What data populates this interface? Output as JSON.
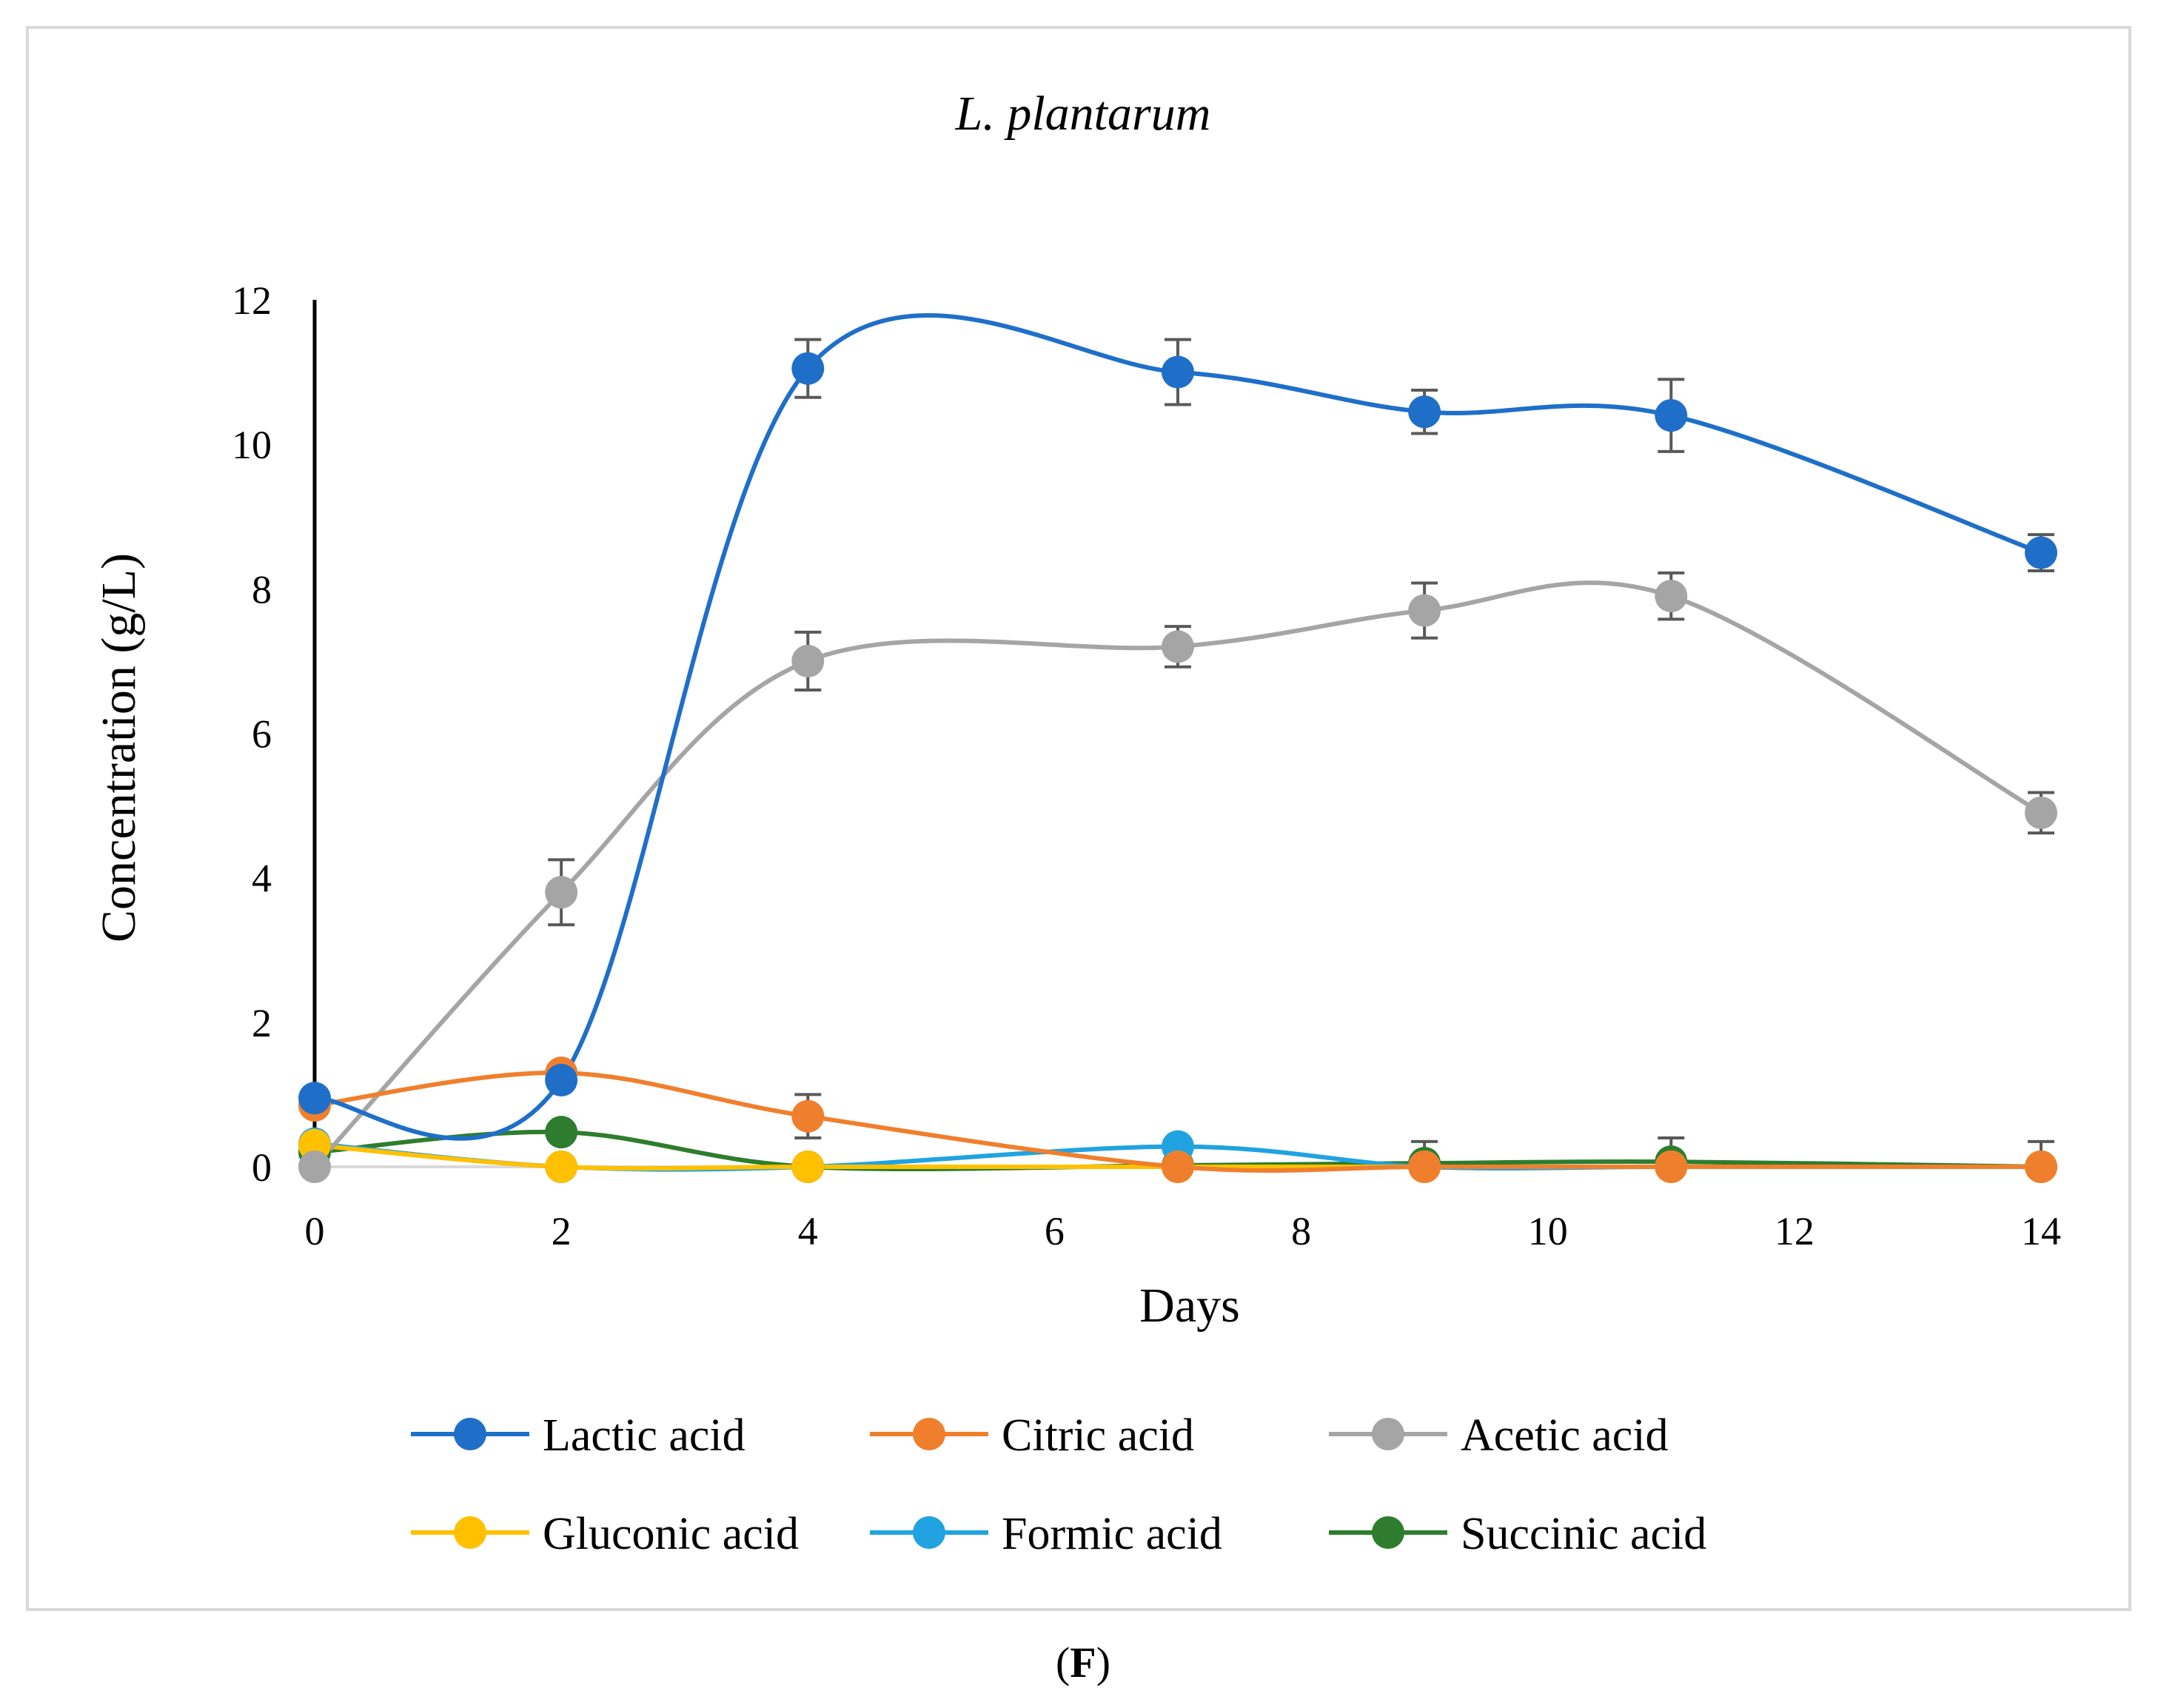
{
  "chart_data": {
    "type": "line",
    "title": "L. plantarum",
    "xlabel": "Days",
    "ylabel": "Concentration (g/L)",
    "panel_label": {
      "open": "(",
      "letter": "F",
      "close": ")"
    },
    "xlim": [
      0,
      14
    ],
    "ylim": [
      0,
      12
    ],
    "x_ticks": [
      0,
      2,
      4,
      6,
      8,
      10,
      12,
      14
    ],
    "y_ticks": [
      0,
      2,
      4,
      6,
      8,
      10,
      12
    ],
    "x": [
      0,
      2,
      4,
      7,
      9,
      11,
      14
    ],
    "smoothed": true,
    "grid": false,
    "legend_position": "bottom",
    "series": [
      {
        "name": "Lactic acid",
        "color": "#1f6fc9",
        "values": [
          0.95,
          1.2,
          11.05,
          11.0,
          10.45,
          10.4,
          8.5
        ],
        "error": [
          0,
          0,
          0.4,
          0.45,
          0.3,
          0.5,
          0.25
        ]
      },
      {
        "name": "Citric acid",
        "color": "#f07f2d",
        "values": [
          0.85,
          1.3,
          0.7,
          0.0,
          0.0,
          0.0,
          0.0
        ],
        "error": [
          0,
          0,
          0.3,
          0,
          0,
          0,
          0
        ]
      },
      {
        "name": "Acetic acid",
        "color": "#a5a5a5",
        "values": [
          0.0,
          3.8,
          7.0,
          7.2,
          7.7,
          7.9,
          4.9
        ],
        "error": [
          0,
          0.45,
          0.4,
          0.28,
          0.38,
          0.32,
          0.28
        ]
      },
      {
        "name": "Gluconic acid",
        "color": "#ffc000",
        "values": [
          0.3,
          0.0,
          0.0,
          0.0,
          0.0,
          0.0,
          0.0
        ],
        "error": [
          0,
          0,
          0,
          0,
          0,
          0,
          0
        ]
      },
      {
        "name": "Formic acid",
        "color": "#20a3e0",
        "values": [
          0.32,
          0.0,
          0.0,
          0.28,
          0.0,
          0.0,
          0.0
        ],
        "error": [
          0,
          0,
          0,
          0,
          0,
          0,
          0
        ]
      },
      {
        "name": "Succinic acid",
        "color": "#2e7d2e",
        "values": [
          0.2,
          0.48,
          0.0,
          0.02,
          0.05,
          0.07,
          0.0
        ],
        "error": [
          0,
          0,
          0,
          0,
          0.3,
          0.33,
          0.35
        ]
      }
    ],
    "colors": {
      "frame": "#d9d9d9",
      "axis": "#000000",
      "baseline": "#d9d9d9",
      "error_bar": "#595959"
    }
  }
}
